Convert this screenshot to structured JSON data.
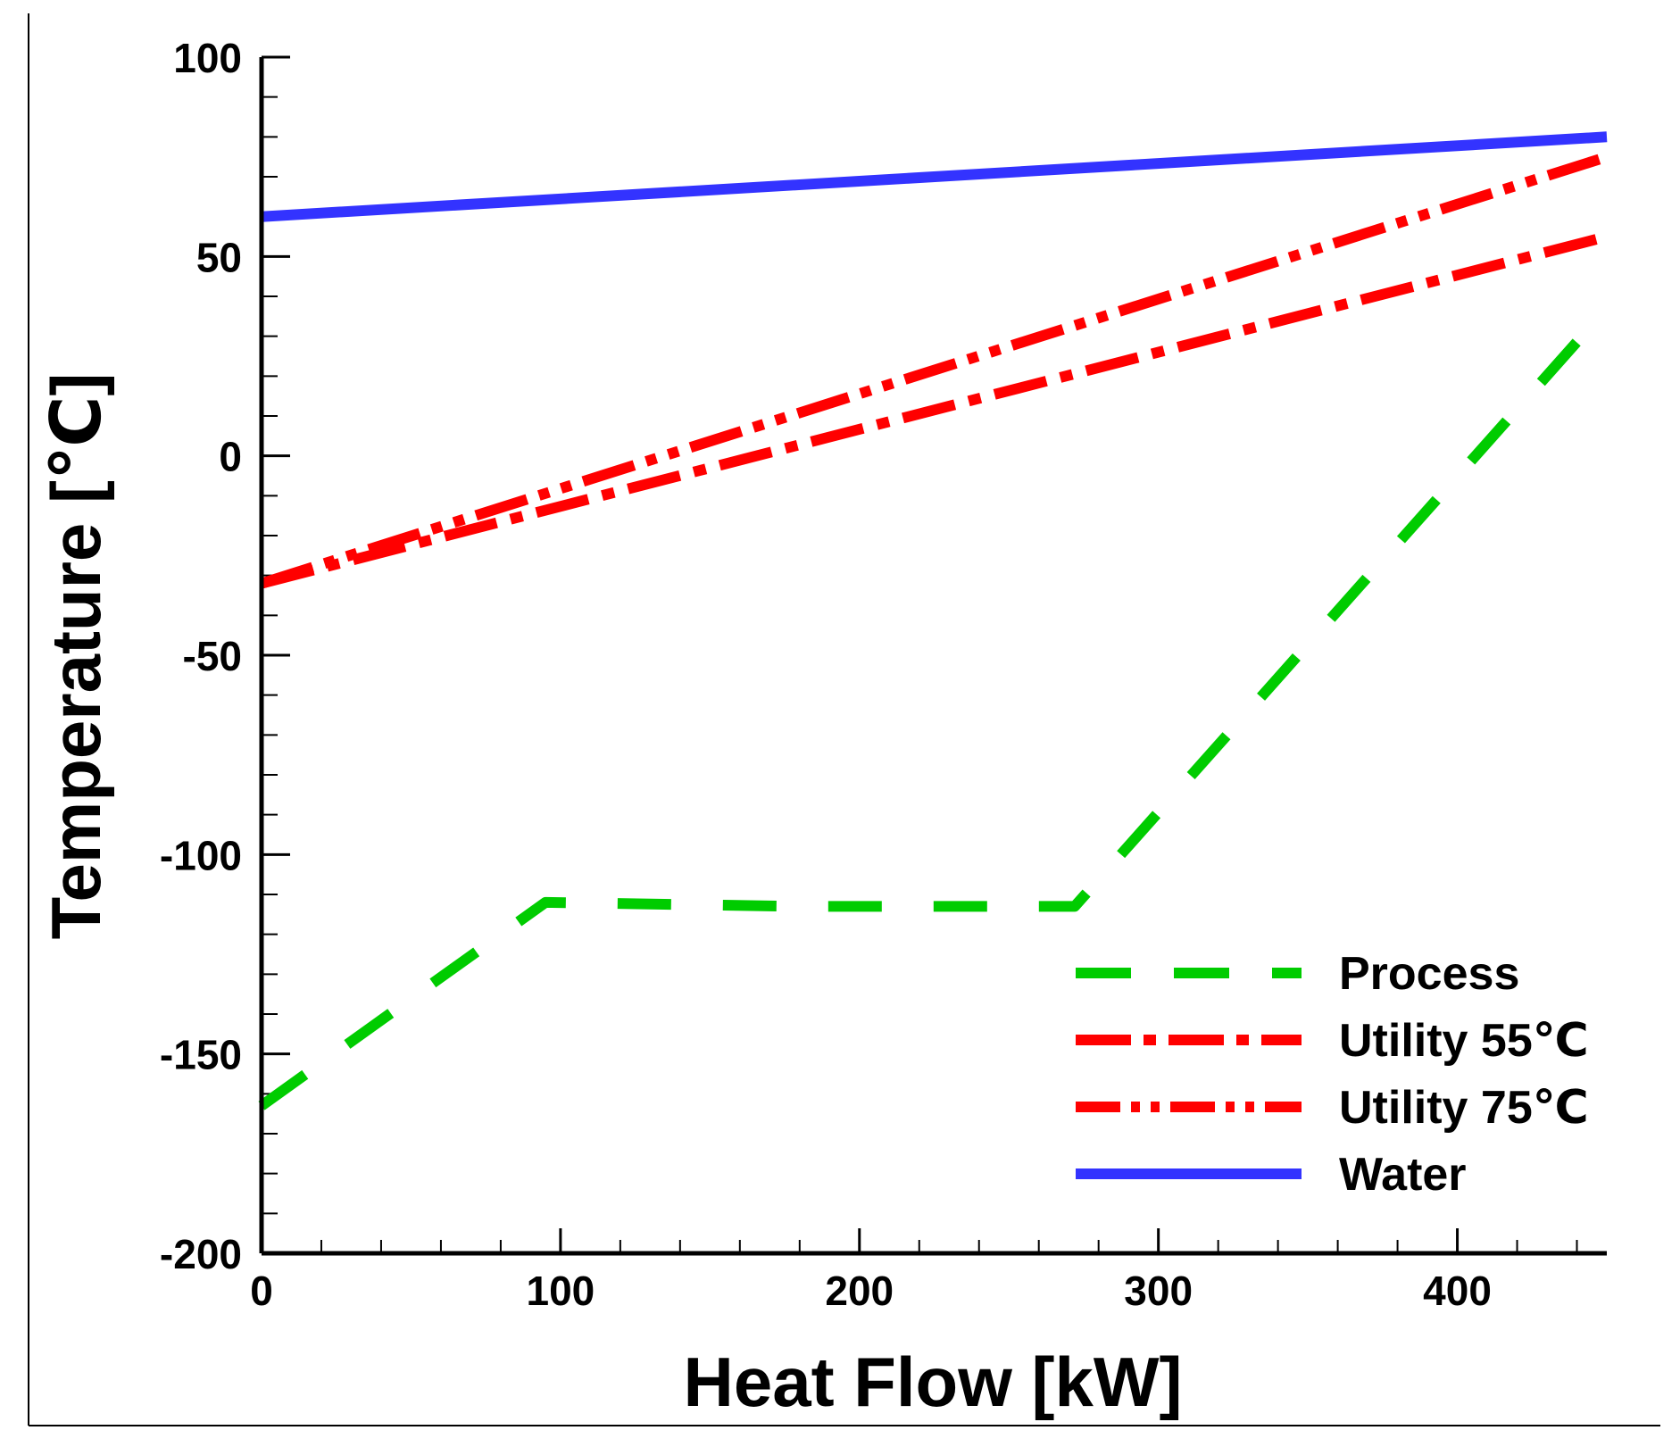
{
  "chart_data": {
    "type": "line",
    "title": "",
    "xlabel": "Heat Flow [kW]",
    "ylabel": "Temperature [℃]",
    "xlim": [
      0,
      450
    ],
    "ylim": [
      -200,
      100
    ],
    "x_ticks": [
      0,
      100,
      200,
      300,
      400
    ],
    "x_tick_labels": [
      "0",
      "100",
      "200",
      "300",
      "400"
    ],
    "y_ticks": [
      -200,
      -150,
      -100,
      -50,
      0,
      50,
      100
    ],
    "y_tick_labels": [
      "-200",
      "-150",
      "-100",
      "-50",
      "0",
      "50",
      "100"
    ],
    "grid": false,
    "legend_position": "bottom-right",
    "series": [
      {
        "name": "Process",
        "color": "#00cc00",
        "style": "dashed",
        "x": [
          0,
          95,
          180,
          272,
          450
        ],
        "y": [
          -163,
          -112,
          -113,
          -113,
          37
        ]
      },
      {
        "name": "Utility 55℃",
        "color": "#ff0000",
        "style": "dash-dot",
        "x": [
          0,
          450
        ],
        "y": [
          -32,
          55
        ]
      },
      {
        "name": "Utility 75℃",
        "color": "#ff0000",
        "style": "dash-dot-dot",
        "x": [
          0,
          450
        ],
        "y": [
          -32,
          75
        ]
      },
      {
        "name": "Water",
        "color": "#3333ff",
        "style": "solid",
        "x": [
          0,
          450
        ],
        "y": [
          60,
          80
        ]
      }
    ]
  }
}
